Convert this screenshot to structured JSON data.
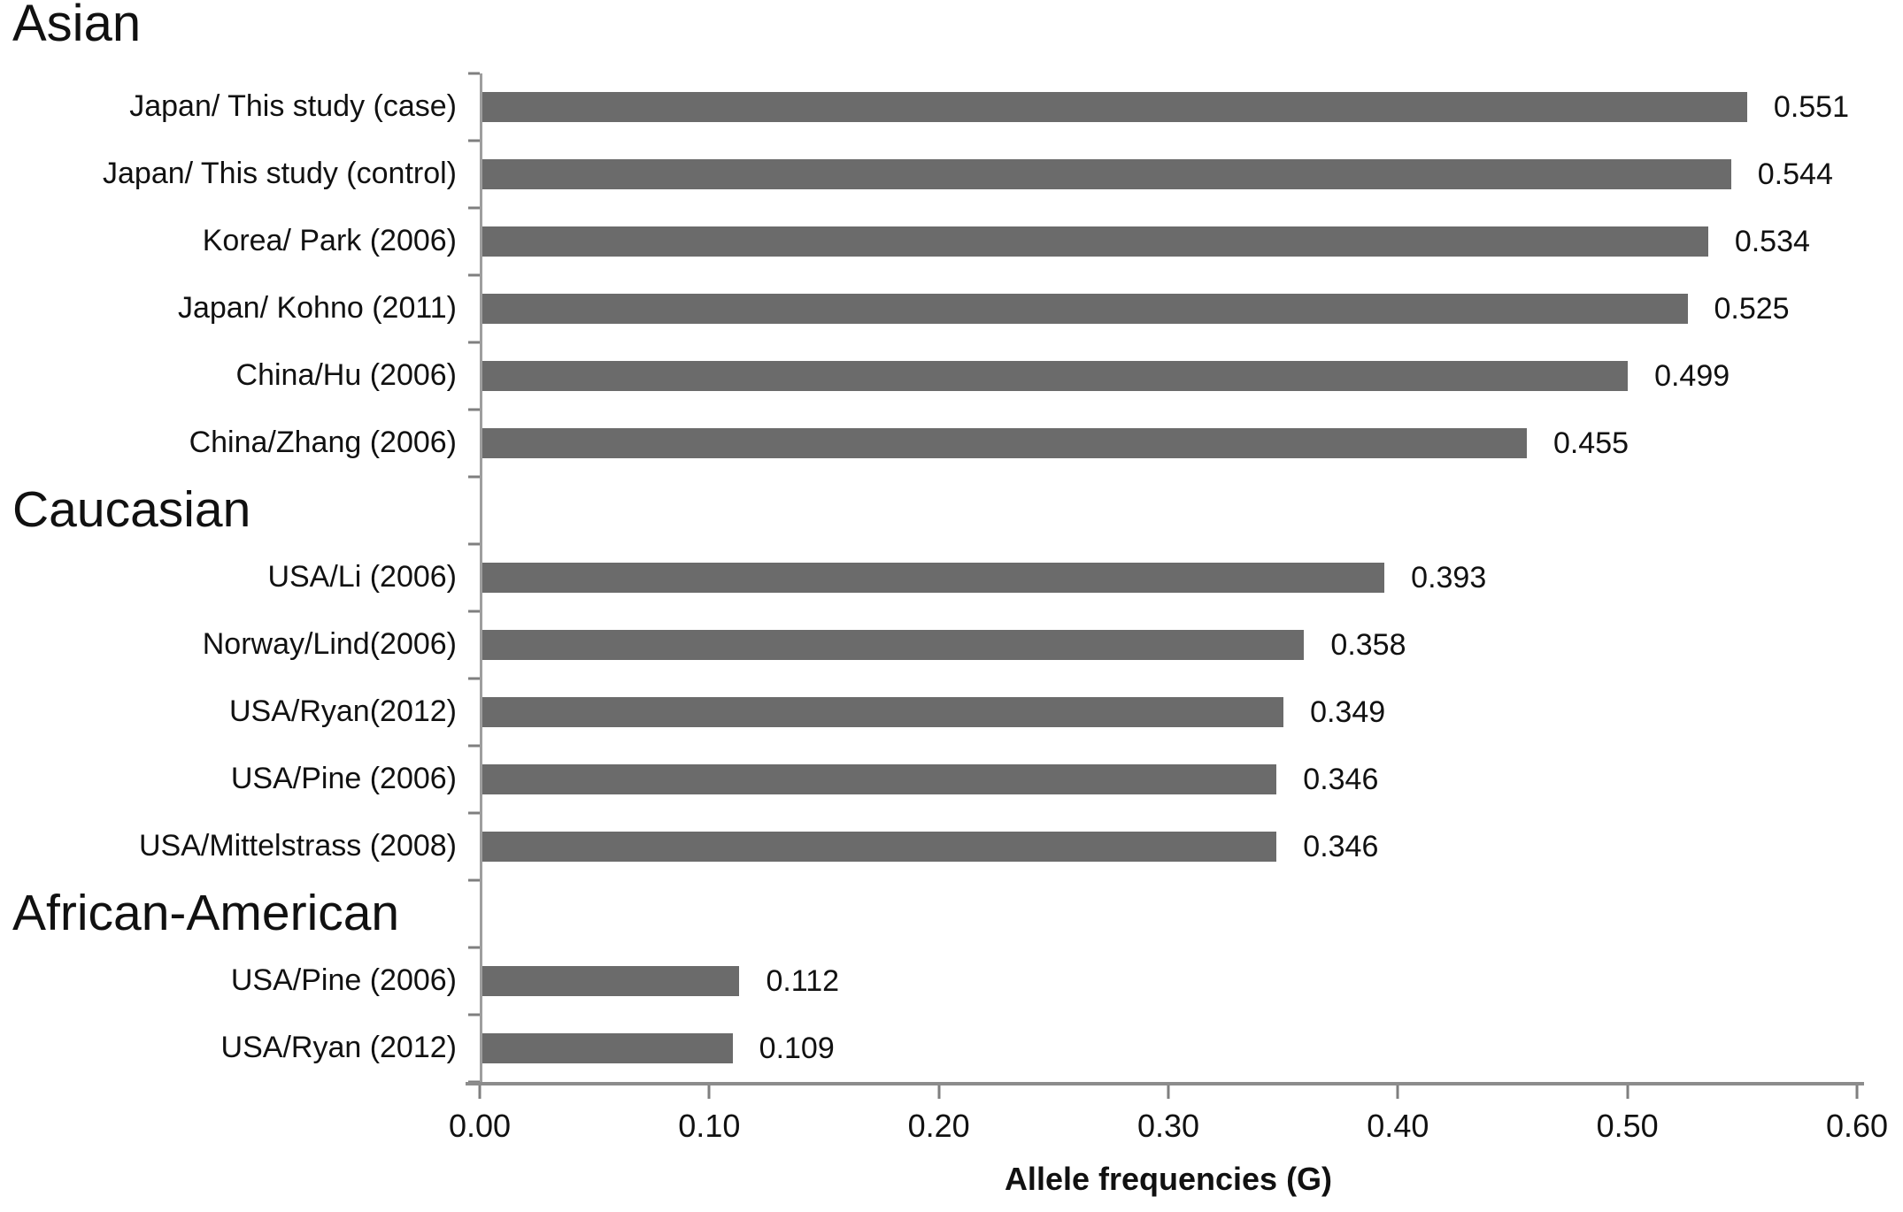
{
  "chart_data": {
    "type": "bar",
    "orientation": "horizontal",
    "title": "",
    "xlabel": "Allele frequencies (G)",
    "ylabel": "",
    "xlim": [
      0,
      0.6
    ],
    "xtick_labels": [
      "0.00",
      "0.10",
      "0.20",
      "0.30",
      "0.40",
      "0.50",
      "0.60"
    ],
    "grid": false,
    "legend": false,
    "bar_color": "#6b6b6b",
    "rows": [
      {
        "type": "group-header",
        "label": "Asian",
        "position": "above-plot"
      },
      {
        "type": "bar",
        "label": "Japan/ This study (case)",
        "value": 0.551,
        "value_label": "0.551"
      },
      {
        "type": "bar",
        "label": "Japan/ This study (control)",
        "value": 0.544,
        "value_label": "0.544"
      },
      {
        "type": "bar",
        "label": "Korea/ Park (2006)",
        "value": 0.534,
        "value_label": "0.534"
      },
      {
        "type": "bar",
        "label": "Japan/ Kohno (2011)",
        "value": 0.525,
        "value_label": "0.525"
      },
      {
        "type": "bar",
        "label": "China/Hu (2006)",
        "value": 0.499,
        "value_label": "0.499"
      },
      {
        "type": "bar",
        "label": "China/Zhang (2006)",
        "value": 0.455,
        "value_label": "0.455"
      },
      {
        "type": "group-header",
        "label": "Caucasian",
        "position": "in-plot"
      },
      {
        "type": "bar",
        "label": "USA/Li (2006)",
        "value": 0.393,
        "value_label": "0.393"
      },
      {
        "type": "bar",
        "label": "Norway/Lind(2006)",
        "value": 0.358,
        "value_label": "0.358"
      },
      {
        "type": "bar",
        "label": "USA/Ryan(2012)",
        "value": 0.349,
        "value_label": "0.349"
      },
      {
        "type": "bar",
        "label": "USA/Pine (2006)",
        "value": 0.346,
        "value_label": "0.346"
      },
      {
        "type": "bar",
        "label": "USA/Mittelstrass (2008)",
        "value": 0.346,
        "value_label": "0.346"
      },
      {
        "type": "group-header",
        "label": "African-American",
        "position": "in-plot"
      },
      {
        "type": "bar",
        "label": "USA/Pine (2006)",
        "value": 0.112,
        "value_label": "0.112"
      },
      {
        "type": "bar",
        "label": "USA/Ryan (2012)",
        "value": 0.109,
        "value_label": "0.109"
      }
    ]
  }
}
